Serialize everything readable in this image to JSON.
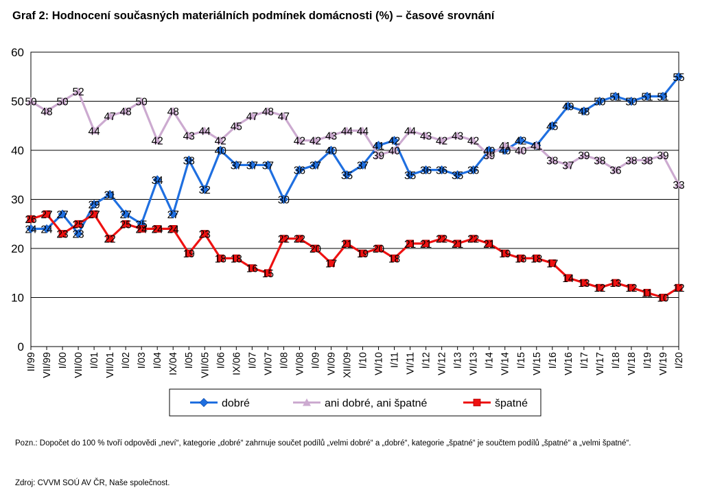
{
  "title": "Graf 2: Hodnocení současných materiálních podmínek domácnosti (%) – časové srovnání",
  "chart_data": {
    "type": "line",
    "categories": [
      "II/99",
      "VII/99",
      "I/00",
      "VII/00",
      "I/01",
      "VII/01",
      "I/02",
      "I/03",
      "I/04",
      "IX/04",
      "I/05",
      "VII/05",
      "I/06",
      "IX/06",
      "I/07",
      "VI/07",
      "I/08",
      "VI/08",
      "I/09",
      "VI/09",
      "XII/09",
      "I/10",
      "VI/10",
      "I/11",
      "VI/11",
      "I/12",
      "VI/12",
      "I/13",
      "VI/13",
      "I/14",
      "VI/14",
      "I/15",
      "VI/15",
      "I/16",
      "VI/16",
      "I/17",
      "VI/17",
      "I/18",
      "VI/18",
      "I/19",
      "VI/19",
      "I/20"
    ],
    "ylim": [
      0,
      60
    ],
    "yticks": [
      0,
      10,
      20,
      30,
      40,
      50,
      60
    ],
    "grid": true,
    "legend_position": "bottom",
    "series": [
      {
        "name": "dobré",
        "color": "#1f6fe0",
        "marker": "diamond",
        "values": [
          24,
          24,
          27,
          23,
          29,
          31,
          27,
          25,
          34,
          27,
          38,
          32,
          40,
          37,
          37,
          37,
          30,
          36,
          37,
          40,
          35,
          37,
          41,
          42,
          35,
          36,
          36,
          35,
          36,
          40,
          40,
          42,
          41,
          45,
          49,
          48,
          50,
          51,
          50,
          51,
          51,
          55
        ]
      },
      {
        "name": "ani dobré, ani špatné",
        "color": "#ccaad0",
        "marker": "triangle",
        "values": [
          50,
          48,
          50,
          52,
          44,
          47,
          48,
          50,
          42,
          48,
          43,
          44,
          42,
          45,
          47,
          48,
          47,
          42,
          42,
          43,
          44,
          44,
          39,
          40,
          44,
          43,
          42,
          43,
          42,
          39,
          41,
          40,
          41,
          38,
          37,
          39,
          38,
          36,
          38,
          38,
          39,
          33
        ]
      },
      {
        "name": "špatné",
        "color": "#ee1111",
        "marker": "square",
        "values": [
          26,
          27,
          23,
          25,
          27,
          22,
          25,
          24,
          24,
          24,
          19,
          23,
          18,
          18,
          16,
          15,
          22,
          22,
          20,
          17,
          21,
          19,
          20,
          18,
          21,
          21,
          22,
          21,
          22,
          21,
          19,
          18,
          18,
          17,
          14,
          13,
          12,
          13,
          12,
          11,
          10,
          12
        ]
      }
    ]
  },
  "note": "Pozn.: Dopočet do 100 % tvoří odpovědi „neví“, kategorie „dobré“ zahrnuje součet podílů „velmi dobré“ a „dobré“, kategorie „špatné“ je součtem podílů „špatné“ a „velmi špatné“.",
  "source": "Zdroj: CVVM SOÚ AV ČR, Naše společnost."
}
